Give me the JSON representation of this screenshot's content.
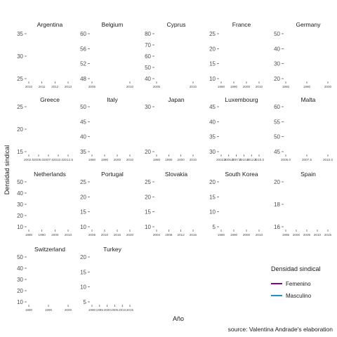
{
  "chart_data": {
    "type": "line",
    "xlabel": "Año",
    "ylabel": "Densidad sindical",
    "caption": "source: Valentina Andrade's elaboration",
    "legend": {
      "title": "Densidad sindical",
      "placement": "right",
      "items": [
        {
          "label": "Femenino",
          "color": "#8B008B"
        },
        {
          "label": "Masculino",
          "color": "#1F8FD6"
        }
      ]
    },
    "grid": false,
    "facets": [
      {
        "name": "Argentina",
        "y_ticks": [
          "35",
          "30",
          "25"
        ],
        "x_ticks": [
          "2010",
          "2011",
          "2012",
          "2013"
        ]
      },
      {
        "name": "Belgium",
        "y_ticks": [
          "60",
          "56",
          "52",
          "48"
        ],
        "x_ticks": [
          "2005",
          "2010"
        ]
      },
      {
        "name": "Cyprus",
        "y_ticks": [
          "80",
          "70",
          "60",
          "50",
          "40"
        ],
        "x_ticks": [
          "2005",
          "2010"
        ]
      },
      {
        "name": "France",
        "y_ticks": [
          "25",
          "20",
          "15",
          "10"
        ],
        "x_ticks": [
          "1980",
          "1990",
          "2000",
          "2010"
        ]
      },
      {
        "name": "Germany",
        "y_ticks": [
          "50",
          "40",
          "30",
          "20"
        ],
        "x_ticks": [
          "1960",
          "1980",
          "2000"
        ]
      },
      {
        "name": "Greece",
        "y_ticks": [
          "25",
          "20",
          "15"
        ],
        "x_ticks": [
          "2002.5",
          "2005.0",
          "2007.5",
          "2010.0",
          "2012.5"
        ]
      },
      {
        "name": "Italy",
        "y_ticks": [
          "50",
          "45",
          "40",
          "35"
        ],
        "x_ticks": [
          "1980",
          "1990",
          "2000",
          "2010"
        ]
      },
      {
        "name": "Japan",
        "y_ticks": [
          "30",
          "20"
        ],
        "x_ticks": [
          "1980",
          "1990",
          "2000",
          "2010"
        ]
      },
      {
        "name": "Luxembourg",
        "y_ticks": [
          "45",
          "40",
          "35",
          "30"
        ],
        "x_ticks": [
          "2002.5",
          "2005.0",
          "2007.5",
          "2010.0",
          "2012.5",
          "2015.0"
        ]
      },
      {
        "name": "Malta",
        "y_ticks": [
          "60",
          "55",
          "50",
          "45"
        ],
        "x_ticks": [
          "2005.0",
          "2007.5",
          "2010.0"
        ]
      },
      {
        "name": "Netherlands",
        "y_ticks": [
          "50",
          "40",
          "30",
          "20",
          "10"
        ],
        "x_ticks": [
          "1980",
          "1990",
          "2000",
          "2010"
        ]
      },
      {
        "name": "Portugal",
        "y_ticks": [
          "25",
          "20",
          "15",
          "10"
        ],
        "x_ticks": [
          "2005",
          "2010",
          "2015",
          "2020"
        ]
      },
      {
        "name": "Slovakia",
        "y_ticks": [
          "25",
          "20",
          "15",
          "10"
        ],
        "x_ticks": [
          "2004",
          "2008",
          "2012",
          "2016"
        ]
      },
      {
        "name": "South Korea",
        "y_ticks": [
          "20",
          "15",
          "10",
          "5"
        ],
        "x_ticks": [
          "1980",
          "1990",
          "2000",
          "2010"
        ]
      },
      {
        "name": "Spain",
        "y_ticks": [
          "20",
          "18",
          "16"
        ],
        "x_ticks": [
          "1995",
          "2000",
          "2005",
          "2010",
          "2015"
        ]
      },
      {
        "name": "Switzerland",
        "y_ticks": [
          "50",
          "40",
          "30",
          "20",
          "10"
        ],
        "x_ticks": [
          "1980",
          "1990",
          "2000"
        ]
      },
      {
        "name": "Turkey",
        "y_ticks": [
          "20",
          "15",
          "10",
          "5"
        ],
        "x_ticks": [
          "1990",
          "1995",
          "2000",
          "2005",
          "2010",
          "2015"
        ]
      }
    ]
  }
}
